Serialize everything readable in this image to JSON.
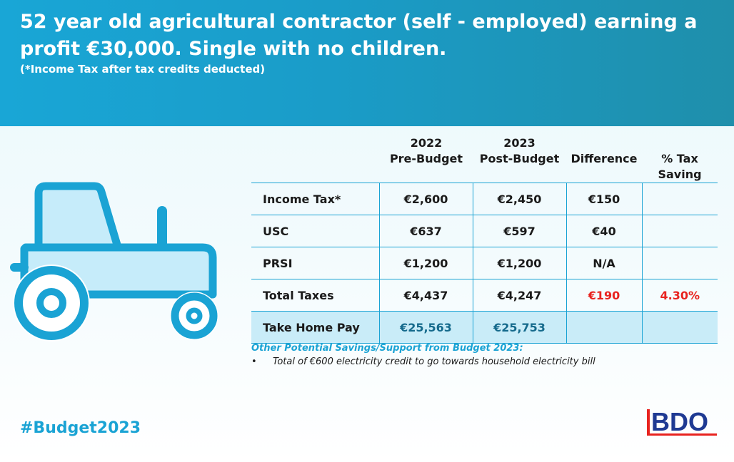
{
  "header": {
    "title": "52 year old agricultural contractor (self - employed) earning a profit €30,000. Single with no children.",
    "subtitle": "(*Income Tax after tax credits deducted)"
  },
  "columns": {
    "pre_year": "2022",
    "pre_label": "Pre-Budget",
    "post_year": "2023",
    "post_label": "Post-Budget",
    "difference": "Difference",
    "saving_line1": "% Tax",
    "saving_line2": "Saving"
  },
  "rows": [
    {
      "label": "Income Tax*",
      "pre": "€2,600",
      "post": "€2,450",
      "diff": "€150",
      "saving": ""
    },
    {
      "label": "USC",
      "pre": "€637",
      "post": "€597",
      "diff": "€40",
      "saving": ""
    },
    {
      "label": "PRSI",
      "pre": "€1,200",
      "post": "€1,200",
      "diff": "N/A",
      "saving": ""
    },
    {
      "label": "Total Taxes",
      "pre": "€4,437",
      "post": "€4,247",
      "diff": "€190",
      "saving": "4.30%"
    },
    {
      "label": "Take Home Pay",
      "pre": "€25,563",
      "post": "€25,753",
      "diff": "",
      "saving": ""
    }
  ],
  "other": {
    "heading": "Other Potential Savings/Support from Budget 2023:",
    "bullet": "•",
    "item": "Total of €600 electricity credit to go towards household electricity bill"
  },
  "footer": {
    "hashtag": "#Budget2023",
    "logo_text": "BDO"
  },
  "colors": {
    "accent": "#1aa3d4",
    "highlight": "#e8231f",
    "logo_blue": "#1f3a93"
  },
  "icons": {
    "illustration": "tractor-icon",
    "logo": "bdo-logo"
  }
}
